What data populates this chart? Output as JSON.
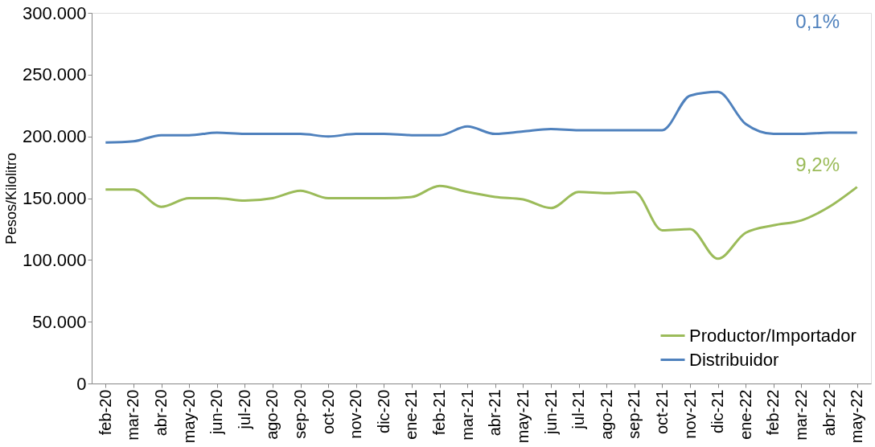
{
  "chart_data": {
    "type": "line",
    "ylabel": "Pesos/Kilolitro",
    "categories": [
      "feb-20",
      "mar-20",
      "abr-20",
      "may-20",
      "jun-20",
      "jul-20",
      "ago-20",
      "sep-20",
      "oct-20",
      "nov-20",
      "dic-20",
      "ene-21",
      "feb-21",
      "mar-21",
      "abr-21",
      "may-21",
      "jun-21",
      "jul-21",
      "ago-21",
      "sep-21",
      "oct-21",
      "nov-21",
      "dic-21",
      "ene-22",
      "feb-22",
      "mar-22",
      "abr-22",
      "may-22"
    ],
    "series": [
      {
        "name": "Productor/Importador",
        "color": "#9bbb59",
        "values": [
          157000,
          157000,
          143000,
          150000,
          150000,
          148000,
          150000,
          156000,
          150000,
          150000,
          150000,
          151000,
          160000,
          155000,
          151000,
          149000,
          142000,
          155000,
          154000,
          155000,
          124000,
          125000,
          101000,
          122000,
          128000,
          132000,
          143000,
          159000
        ]
      },
      {
        "name": "Distribuidor",
        "color": "#4f81bd",
        "values": [
          195000,
          196000,
          201000,
          201000,
          203000,
          202000,
          202000,
          202000,
          200000,
          202000,
          202000,
          201000,
          201000,
          208000,
          202000,
          204000,
          206000,
          205000,
          205000,
          205000,
          205000,
          233000,
          236000,
          210000,
          202000,
          202000,
          203000,
          203000
        ]
      }
    ],
    "ylim": [
      0,
      300000
    ],
    "yticks": [
      {
        "value": 0,
        "label": "0"
      },
      {
        "value": 50000,
        "label": "50.000"
      },
      {
        "value": 100000,
        "label": "100.000"
      },
      {
        "value": 150000,
        "label": "150.000"
      },
      {
        "value": 200000,
        "label": "200.000"
      },
      {
        "value": 250000,
        "label": "250.000"
      },
      {
        "value": 300000,
        "label": "300.000"
      }
    ],
    "annotations": [
      "9,2%",
      "0,1%"
    ],
    "legend": "bottom right",
    "grid": false,
    "marker": "none",
    "line_style": "solid"
  }
}
